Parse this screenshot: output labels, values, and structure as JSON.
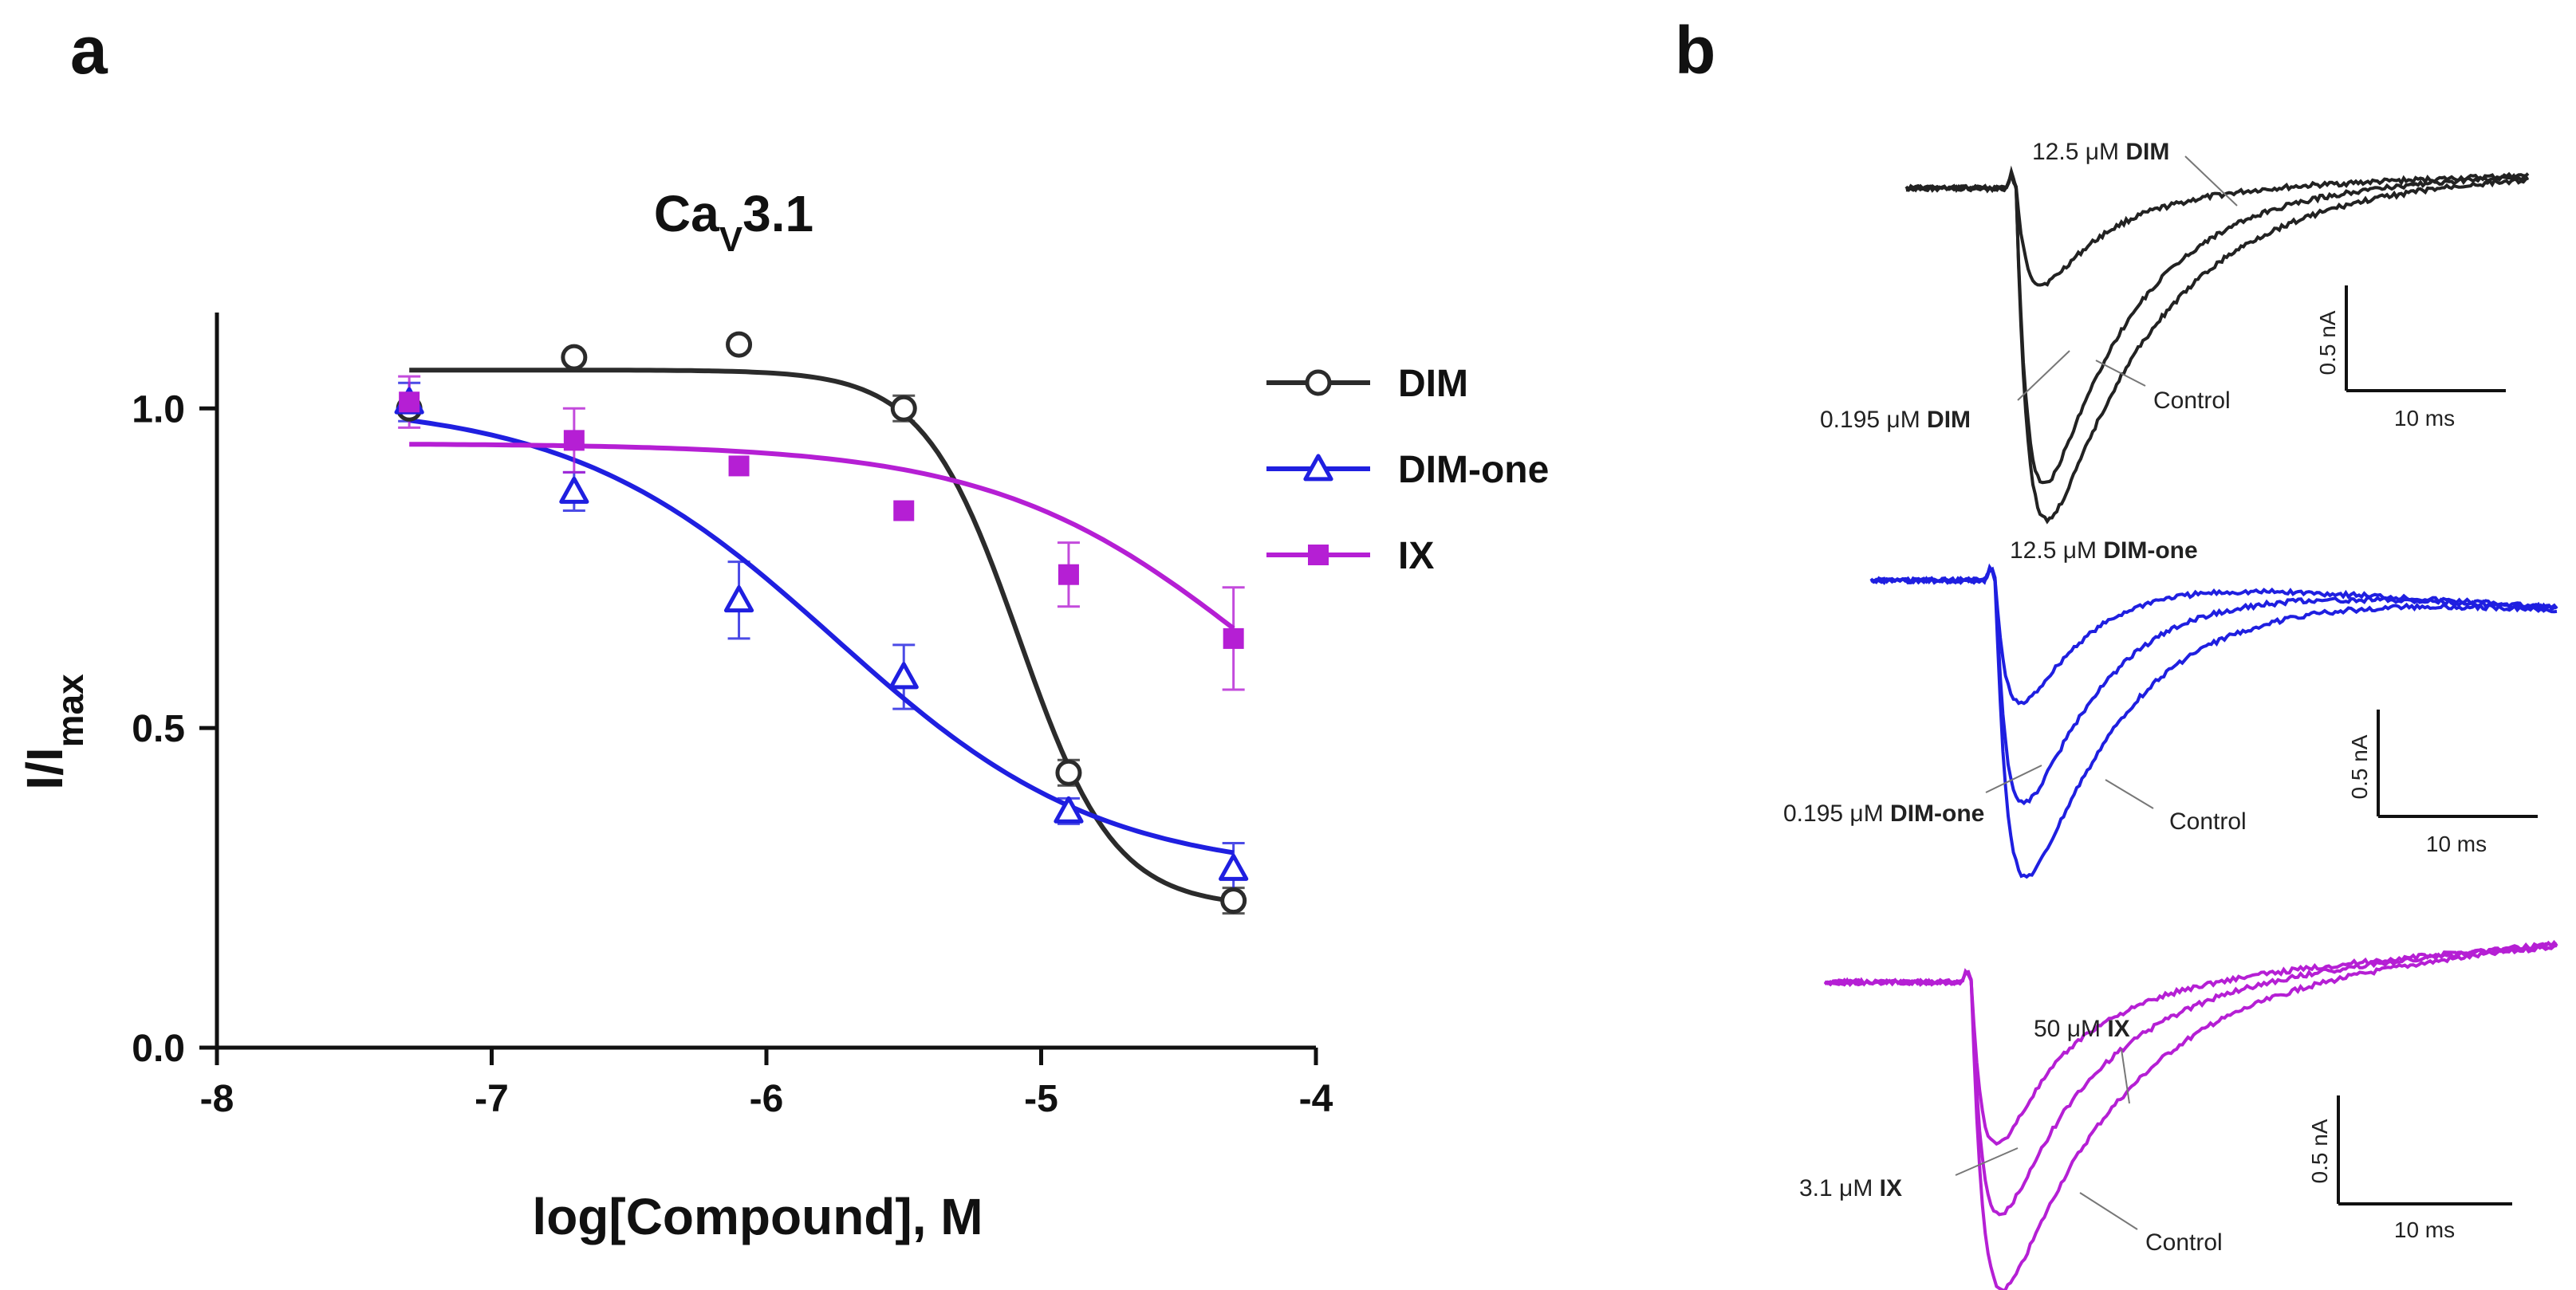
{
  "panel_a_letter": "a",
  "panel_b_letter": "b",
  "chart_data": {
    "type": "scatter",
    "title_main": "Ca",
    "title_sub": "V",
    "title_end": "3.1",
    "xlabel": "log[Compound], M",
    "ylabel_main": "I/I",
    "ylabel_sub": "max",
    "xlim": [
      -8,
      -4
    ],
    "ylim": [
      0,
      1.15
    ],
    "xticks": [
      -8,
      -7,
      -6,
      -5,
      -4
    ],
    "xtick_labels": [
      "-8",
      "-7",
      "-6",
      "-5",
      "-4"
    ],
    "yticks": [
      0,
      0.5,
      1.0
    ],
    "ytick_labels": [
      "0.0",
      "0.5",
      "1.0"
    ],
    "series": [
      {
        "name": "DIM",
        "color": "#2b2b2b",
        "marker": "circle",
        "x": [
          -7.3,
          -6.7,
          -6.1,
          -5.5,
          -4.9,
          -4.3
        ],
        "y": [
          1.0,
          1.08,
          1.1,
          1.0,
          0.43,
          0.23
        ],
        "err": [
          0.0,
          0.0,
          0.0,
          0.02,
          0.02,
          0.02
        ],
        "fit": {
          "top": 1.06,
          "bottom": 0.22,
          "logIC50": -5.08,
          "hill": 2.5
        }
      },
      {
        "name": "DIM-one",
        "color": "#1f1fe0",
        "marker": "triangle",
        "x": [
          -7.3,
          -6.7,
          -6.1,
          -5.5,
          -4.9,
          -4.3
        ],
        "y": [
          1.01,
          0.87,
          0.7,
          0.58,
          0.37,
          0.28
        ],
        "err": [
          0.03,
          0.03,
          0.06,
          0.05,
          0.02,
          0.04
        ],
        "fit": {
          "top": 1.01,
          "bottom": 0.27,
          "logIC50": -5.75,
          "hill": 0.9
        }
      },
      {
        "name": "IX",
        "color": "#b51fd4",
        "marker": "square",
        "x": [
          -7.3,
          -6.7,
          -6.1,
          -5.5,
          -4.9,
          -4.3
        ],
        "y": [
          1.01,
          0.95,
          0.91,
          0.84,
          0.74,
          0.64
        ],
        "err": [
          0.04,
          0.05,
          0.0,
          0.0,
          0.05,
          0.08
        ],
        "fit": {
          "top": 0.945,
          "bottom": 0.3,
          "logIC50": -4.2,
          "hill": 0.9
        }
      }
    ]
  },
  "traces": [
    {
      "name": "DIM",
      "color": "#222222",
      "label_high_num": "12.5 μM ",
      "label_high_bold": "DIM",
      "label_low_num": "0.195 μM ",
      "label_low_bold": "DIM",
      "label_control": "Control",
      "amps": [
        0.32,
        0.9,
        0.95
      ],
      "scale_y_label": "0.5 nA",
      "scale_x_label": "10 ms"
    },
    {
      "name": "DIM-one",
      "color": "#1f1fe0",
      "label_high_num": "12.5 μM ",
      "label_high_bold": "DIM-one",
      "label_low_num": "0.195 μM ",
      "label_low_bold": "DIM-one",
      "label_control": "Control",
      "amps": [
        0.41,
        0.68,
        0.85
      ],
      "scale_y_label": "0.5 nA",
      "scale_x_label": "10 ms"
    },
    {
      "name": "IX",
      "color": "#b51fd4",
      "label_high_num": "50 μM ",
      "label_high_bold": "IX",
      "label_low_num": "3.1 μM ",
      "label_low_bold": "IX",
      "label_control": "Control",
      "amps": [
        0.54,
        0.71,
        0.88
      ],
      "scale_y_label": "0.5 nA",
      "scale_x_label": "10 ms"
    }
  ]
}
